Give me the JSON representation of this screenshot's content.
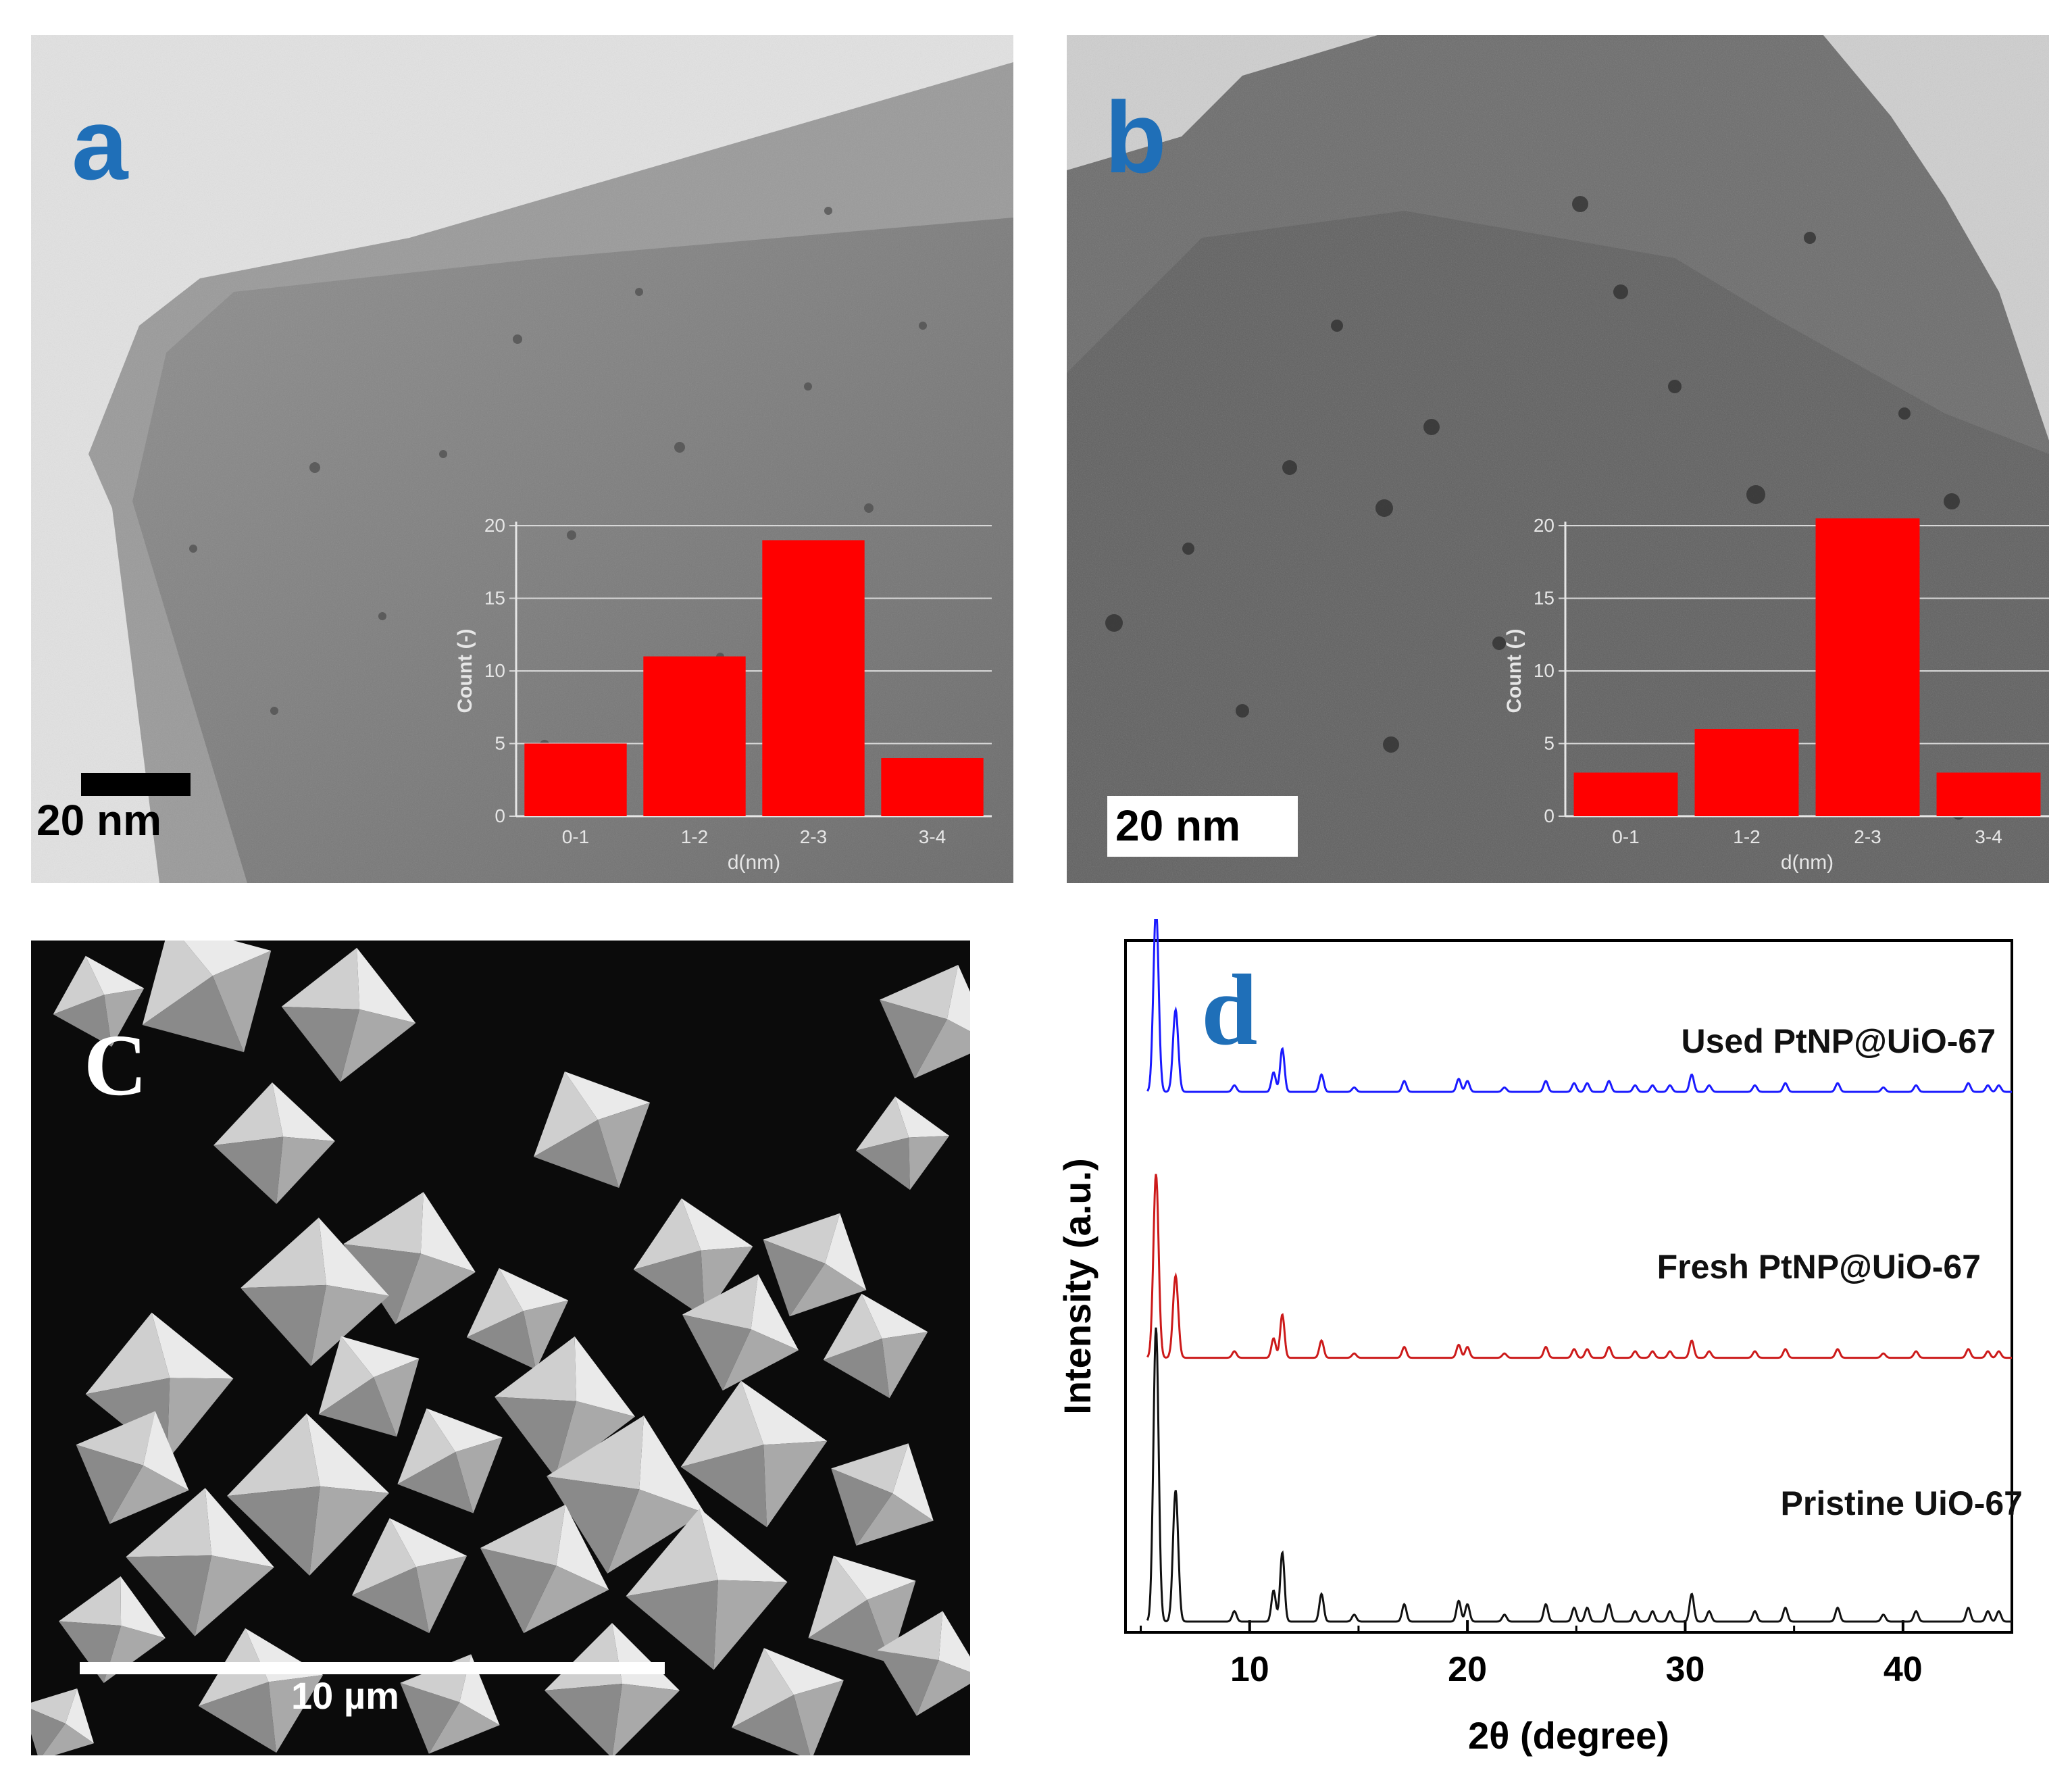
{
  "panels": {
    "a": {
      "letter": "a",
      "scale_bar": "20 nm"
    },
    "b": {
      "letter": "b",
      "scale_bar": "20 nm"
    },
    "c": {
      "letter": "C",
      "scale_bar": "10 µm"
    },
    "d": {
      "letter": "d"
    }
  },
  "colors": {
    "letter_blue": "#1f6fb8",
    "bar_red": "#ff0000",
    "used_line": "#1a1aff",
    "fresh_line": "#cc1a1a",
    "pristine_line": "#111111"
  },
  "chart_data": [
    {
      "id": "a-inset",
      "type": "bar",
      "categories": [
        "0-1",
        "1-2",
        "2-3",
        "3-4"
      ],
      "values": [
        5,
        11,
        19,
        4
      ],
      "title": "",
      "xlabel": "d(nm)",
      "ylabel": "Count (-)",
      "ylim": [
        0,
        20
      ],
      "yticks": [
        0,
        5,
        10,
        15,
        20
      ],
      "grid": true
    },
    {
      "id": "b-inset",
      "type": "bar",
      "categories": [
        "0-1",
        "1-2",
        "2-3",
        "3-4"
      ],
      "values": [
        3,
        6,
        20.5,
        3
      ],
      "title": "",
      "xlabel": "d(nm)",
      "ylabel": "Count (-)",
      "ylim": [
        0,
        20
      ],
      "yticks": [
        0,
        5,
        10,
        15,
        20
      ],
      "grid": true
    },
    {
      "id": "d-xrd",
      "type": "line",
      "title": "",
      "xlabel": "2θ (degree)",
      "ylabel": "Intensity (a.u.)",
      "xlim": [
        4.3,
        45
      ],
      "xticks": [
        10,
        20,
        30,
        40
      ],
      "ylim": [
        0,
        3.2
      ],
      "grid": false,
      "peaks": [
        {
          "x": 5.7,
          "h": 0.85,
          "w": 0.12
        },
        {
          "x": 6.6,
          "h": 0.38,
          "w": 0.12
        },
        {
          "x": 9.3,
          "h": 0.03,
          "w": 0.1
        },
        {
          "x": 11.1,
          "h": 0.09,
          "w": 0.1
        },
        {
          "x": 11.5,
          "h": 0.2,
          "w": 0.1
        },
        {
          "x": 13.3,
          "h": 0.08,
          "w": 0.1
        },
        {
          "x": 14.8,
          "h": 0.02,
          "w": 0.1
        },
        {
          "x": 17.1,
          "h": 0.05,
          "w": 0.1
        },
        {
          "x": 19.6,
          "h": 0.06,
          "w": 0.1
        },
        {
          "x": 20.0,
          "h": 0.05,
          "w": 0.1
        },
        {
          "x": 21.7,
          "h": 0.02,
          "w": 0.1
        },
        {
          "x": 23.6,
          "h": 0.05,
          "w": 0.1
        },
        {
          "x": 24.9,
          "h": 0.04,
          "w": 0.1
        },
        {
          "x": 25.5,
          "h": 0.04,
          "w": 0.1
        },
        {
          "x": 26.5,
          "h": 0.05,
          "w": 0.1
        },
        {
          "x": 27.7,
          "h": 0.03,
          "w": 0.1
        },
        {
          "x": 28.5,
          "h": 0.03,
          "w": 0.1
        },
        {
          "x": 29.3,
          "h": 0.03,
          "w": 0.1
        },
        {
          "x": 30.3,
          "h": 0.08,
          "w": 0.1
        },
        {
          "x": 31.1,
          "h": 0.03,
          "w": 0.1
        },
        {
          "x": 33.2,
          "h": 0.03,
          "w": 0.1
        },
        {
          "x": 34.6,
          "h": 0.04,
          "w": 0.1
        },
        {
          "x": 37.0,
          "h": 0.04,
          "w": 0.1
        },
        {
          "x": 39.1,
          "h": 0.02,
          "w": 0.1
        },
        {
          "x": 40.6,
          "h": 0.03,
          "w": 0.1
        },
        {
          "x": 43.0,
          "h": 0.04,
          "w": 0.1
        },
        {
          "x": 43.9,
          "h": 0.03,
          "w": 0.1
        },
        {
          "x": 44.4,
          "h": 0.03,
          "w": 0.1
        }
      ],
      "series": [
        {
          "name": "Used PtNP@UiO-67",
          "offset": 2.45,
          "scale": 1.0,
          "color": "#1a1aff"
        },
        {
          "name": "Fresh PtNP@UiO-67",
          "offset": 1.22,
          "scale": 1.0,
          "color": "#cc1a1a"
        },
        {
          "name": "Pristine UiO-67",
          "offset": 0.0,
          "scale": 1.6,
          "color": "#111111"
        }
      ]
    }
  ]
}
